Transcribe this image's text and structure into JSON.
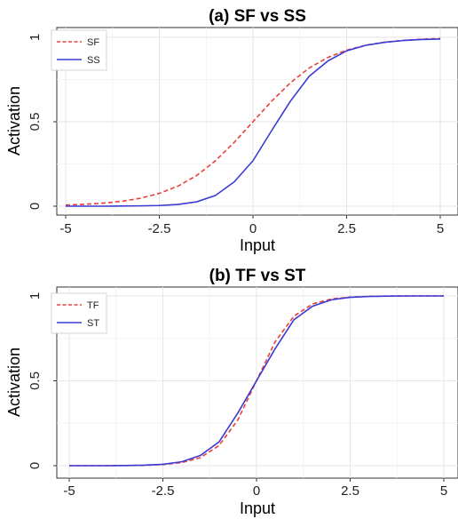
{
  "chart_data": [
    {
      "type": "line",
      "title": "(a)  SF vs SS",
      "xlabel": "Input",
      "ylabel": "Activation",
      "xlim": [
        -5,
        5
      ],
      "ylim": [
        0,
        1
      ],
      "xticks": [
        "-5",
        "-2.5",
        "0",
        "2.5",
        "5"
      ],
      "xtick_values": [
        -5,
        -2.5,
        0,
        2.5,
        5
      ],
      "yticks": [
        "0",
        "0.5",
        "1"
      ],
      "ytick_values": [
        0,
        0.5,
        1
      ],
      "grid": true,
      "legend_position": "top-left",
      "x": [
        -5,
        -4.5,
        -4,
        -3.5,
        -3,
        -2.5,
        -2,
        -1.5,
        -1,
        -0.5,
        0,
        0.5,
        1,
        1.5,
        2,
        2.5,
        3,
        3.5,
        4,
        4.5,
        5
      ],
      "series": [
        {
          "name": "SF",
          "color": "#e8403a",
          "style": "dashed",
          "values": [
            0.007,
            0.011,
            0.018,
            0.029,
            0.047,
            0.076,
            0.119,
            0.182,
            0.269,
            0.378,
            0.5,
            0.622,
            0.731,
            0.818,
            0.881,
            0.924,
            0.953,
            0.971,
            0.982,
            0.989,
            0.993
          ]
        },
        {
          "name": "SS",
          "color": "#3a3ad6",
          "style": "solid",
          "values": [
            0.0,
            0.0,
            0.0,
            0.001,
            0.002,
            0.004,
            0.01,
            0.026,
            0.064,
            0.144,
            0.269,
            0.448,
            0.622,
            0.769,
            0.86,
            0.92,
            0.952,
            0.97,
            0.981,
            0.987,
            0.99
          ]
        }
      ]
    },
    {
      "type": "line",
      "title": "(b)  TF vs ST",
      "xlabel": "Input",
      "ylabel": "Activation",
      "xlim": [
        -5,
        5
      ],
      "ylim": [
        0,
        1
      ],
      "xticks": [
        "-5",
        "-2.5",
        "0",
        "2.5",
        "5"
      ],
      "xtick_values": [
        -5,
        -2.5,
        0,
        2.5,
        5
      ],
      "yticks": [
        "0",
        "0.5",
        "1"
      ],
      "ytick_values": [
        0,
        0.5,
        1
      ],
      "grid": true,
      "legend_position": "top-left",
      "x": [
        -5,
        -4.5,
        -4,
        -3.5,
        -3,
        -2.5,
        -2,
        -1.5,
        -1,
        -0.5,
        0,
        0.5,
        1,
        1.5,
        2,
        2.5,
        3,
        3.5,
        4,
        4.5,
        5
      ],
      "series": [
        {
          "name": "TF",
          "color": "#e8403a",
          "style": "dashed",
          "values": [
            0.0,
            0.0,
            0.0,
            0.001,
            0.002,
            0.007,
            0.018,
            0.047,
            0.119,
            0.269,
            0.5,
            0.731,
            0.881,
            0.953,
            0.982,
            0.993,
            0.998,
            0.999,
            1.0,
            1.0,
            1.0
          ]
        },
        {
          "name": "ST",
          "color": "#3a3ad6",
          "style": "solid",
          "values": [
            0.0,
            0.0,
            0.0,
            0.001,
            0.003,
            0.008,
            0.023,
            0.06,
            0.14,
            0.31,
            0.5,
            0.69,
            0.86,
            0.94,
            0.977,
            0.992,
            0.997,
            0.999,
            1.0,
            1.0,
            1.0
          ]
        }
      ]
    }
  ]
}
